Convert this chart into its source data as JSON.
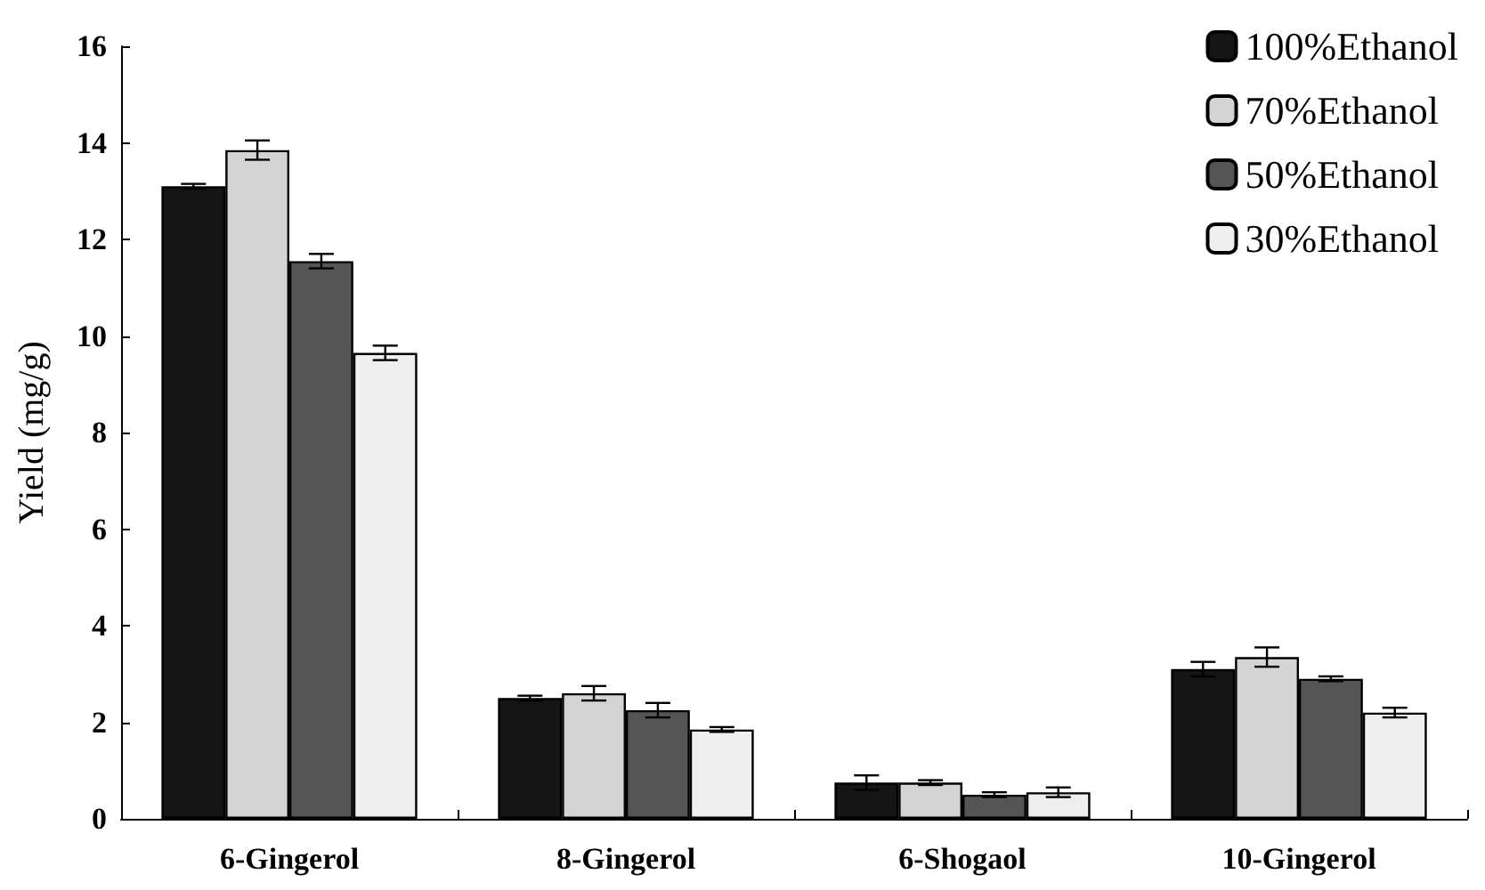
{
  "chart_data": {
    "type": "bar",
    "ylabel": "Yield (mg/g)",
    "categories": [
      "6-Gingerol",
      "8-Gingerol",
      "6-Shogaol",
      "10-Gingerol"
    ],
    "series": [
      {
        "name": "100%Ethanol",
        "color": "#151515",
        "values": [
          13.1,
          2.5,
          0.75,
          3.1
        ],
        "errors": [
          0.05,
          0.05,
          0.15,
          0.15
        ]
      },
      {
        "name": "70%Ethanol",
        "color": "#d4d4d4",
        "values": [
          13.85,
          2.6,
          0.75,
          3.35
        ],
        "errors": [
          0.2,
          0.15,
          0.05,
          0.2
        ]
      },
      {
        "name": "50%Ethanol",
        "color": "#555555",
        "values": [
          11.55,
          2.25,
          0.5,
          2.9
        ],
        "errors": [
          0.15,
          0.15,
          0.05,
          0.05
        ]
      },
      {
        "name": "30%Ethanol",
        "color": "#eeeeee",
        "values": [
          9.65,
          1.85,
          0.55,
          2.2
        ],
        "errors": [
          0.15,
          0.05,
          0.1,
          0.1
        ]
      }
    ],
    "ylim": [
      0,
      16
    ],
    "yticks": [
      0,
      2,
      4,
      6,
      8,
      10,
      12,
      14,
      16
    ],
    "grid": false,
    "legend": "top right"
  }
}
